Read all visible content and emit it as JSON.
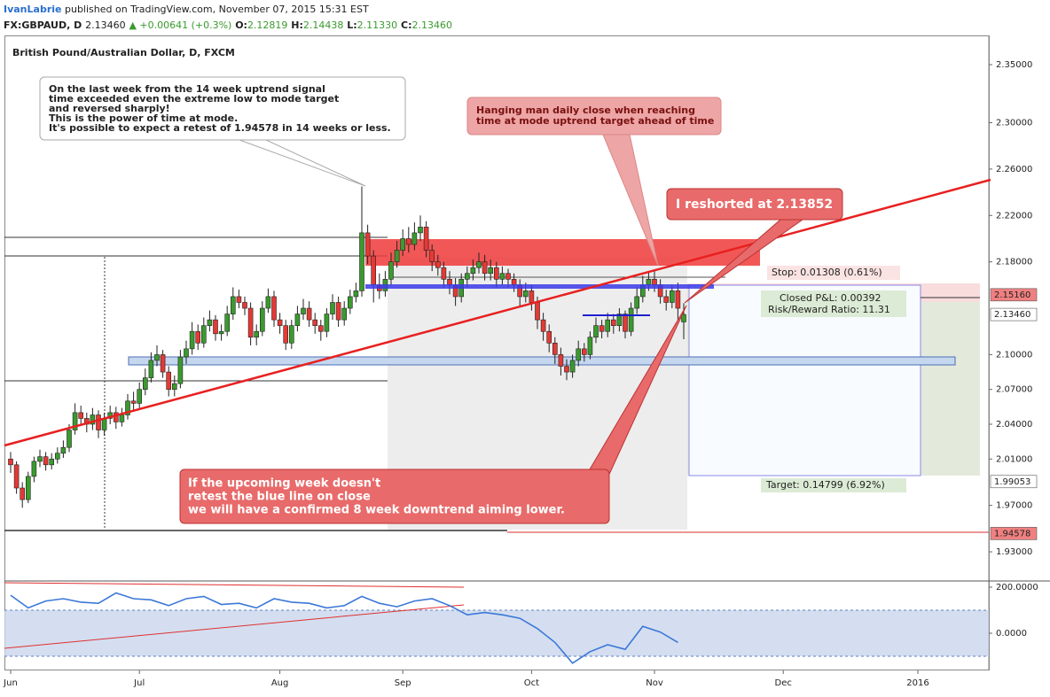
{
  "chart_data": {
    "type": "candlestick",
    "header": {
      "publisher": "IvanLabrie",
      "published": "published on TradingView.com, November 07, 2015 15:31 EST",
      "symbol": "FX:GBPAUD, D",
      "last": "2.13460",
      "change": "▲ +0.00641 (+0.3%)",
      "ohlc": [
        {
          "key": "O:",
          "value": "2.12819"
        },
        {
          "key": "H:",
          "value": "2.14438"
        },
        {
          "key": "L:",
          "value": "2.11330"
        },
        {
          "key": "C:",
          "value": "2.13460"
        }
      ]
    },
    "title": "British Pound/Australian Dollar, D, FXCM",
    "up_color": "#3a9a2e",
    "down_color": "#e53935",
    "open": [
      2.01,
      2.005,
      1.985,
      1.975,
      1.995,
      2.008,
      2.012,
      2.005,
      2.01,
      2.015,
      2.02,
      2.035,
      2.05,
      2.045,
      2.04,
      2.048,
      2.035,
      2.045,
      2.05,
      2.042,
      2.048,
      2.06,
      2.058,
      2.07,
      2.08,
      2.095,
      2.1,
      2.085,
      2.07,
      2.075,
      2.098,
      2.105,
      2.12,
      2.11,
      2.125,
      2.13,
      2.118,
      2.12,
      2.135,
      2.15,
      2.145,
      2.14,
      2.115,
      2.12,
      2.14,
      2.15,
      2.13,
      2.125,
      2.11,
      2.125,
      2.135,
      2.14,
      2.13,
      2.125,
      2.12,
      2.135,
      2.145,
      2.13,
      2.14,
      2.15,
      2.155,
      2.205,
      2.185,
      2.16,
      2.155,
      2.165,
      2.18,
      2.19,
      2.2,
      2.195,
      2.205,
      2.21,
      2.19,
      2.18,
      2.175,
      2.165,
      2.16,
      2.15,
      2.165,
      2.17,
      2.175,
      2.18,
      2.17,
      2.175,
      2.165,
      2.17,
      2.165,
      2.16,
      2.15,
      2.155,
      2.145,
      2.13,
      2.12,
      2.11,
      2.1,
      2.09,
      2.085,
      2.095,
      2.105,
      2.1,
      2.115,
      2.125,
      2.12,
      2.13,
      2.125,
      2.135,
      2.12,
      2.14,
      2.15,
      2.16,
      2.165,
      2.16,
      2.15,
      2.145,
      2.155,
      2.12819
    ],
    "high": [
      2.016,
      2.008,
      1.99,
      1.999,
      2.012,
      2.018,
      2.016,
      2.015,
      2.02,
      2.026,
      2.04,
      2.058,
      2.056,
      2.05,
      2.054,
      2.052,
      2.05,
      2.056,
      2.055,
      2.054,
      2.066,
      2.068,
      2.076,
      2.088,
      2.102,
      2.108,
      2.104,
      2.09,
      2.082,
      2.104,
      2.112,
      2.128,
      2.126,
      2.132,
      2.138,
      2.134,
      2.126,
      2.142,
      2.158,
      2.156,
      2.15,
      2.145,
      2.126,
      2.146,
      2.157,
      2.155,
      2.136,
      2.13,
      2.13,
      2.142,
      2.148,
      2.146,
      2.136,
      2.13,
      2.14,
      2.152,
      2.15,
      2.146,
      2.156,
      2.162,
      2.245,
      2.212,
      2.19,
      2.17,
      2.172,
      2.188,
      2.198,
      2.208,
      2.21,
      2.214,
      2.22,
      2.215,
      2.195,
      2.186,
      2.18,
      2.172,
      2.166,
      2.17,
      2.176,
      2.182,
      2.188,
      2.186,
      2.182,
      2.18,
      2.176,
      2.174,
      2.17,
      2.165,
      2.162,
      2.16,
      2.15,
      2.136,
      2.126,
      2.115,
      2.106,
      2.096,
      2.1,
      2.112,
      2.11,
      2.12,
      2.132,
      2.13,
      2.136,
      2.135,
      2.14,
      2.138,
      2.145,
      2.158,
      2.168,
      2.172,
      2.172,
      2.165,
      2.156,
      2.16,
      2.162,
      2.14438
    ],
    "low": [
      1.998,
      1.98,
      1.968,
      1.972,
      1.99,
      2.003,
      2.0,
      2.001,
      2.006,
      2.011,
      2.016,
      2.031,
      2.04,
      2.033,
      2.035,
      2.028,
      2.03,
      2.04,
      2.036,
      2.038,
      2.044,
      2.052,
      2.054,
      2.065,
      2.076,
      2.09,
      2.08,
      2.064,
      2.064,
      2.071,
      2.092,
      2.1,
      2.104,
      2.106,
      2.12,
      2.112,
      2.112,
      2.116,
      2.13,
      2.14,
      2.134,
      2.108,
      2.108,
      2.116,
      2.136,
      2.124,
      2.118,
      2.104,
      2.105,
      2.12,
      2.13,
      2.124,
      2.118,
      2.112,
      2.115,
      2.13,
      2.124,
      2.125,
      2.135,
      2.145,
      2.15,
      2.178,
      2.145,
      2.148,
      2.15,
      2.16,
      2.175,
      2.185,
      2.188,
      2.19,
      2.198,
      2.184,
      2.172,
      2.168,
      2.158,
      2.152,
      2.142,
      2.145,
      2.158,
      2.164,
      2.17,
      2.164,
      2.164,
      2.158,
      2.16,
      2.158,
      2.154,
      2.142,
      2.145,
      2.138,
      2.122,
      2.112,
      2.102,
      2.092,
      2.082,
      2.078,
      2.08,
      2.09,
      2.094,
      2.096,
      2.11,
      2.114,
      2.115,
      2.118,
      2.12,
      2.114,
      2.116,
      2.135,
      2.145,
      2.155,
      2.154,
      2.144,
      2.138,
      2.14,
      2.128,
      2.1133
    ],
    "close": [
      2.005,
      1.985,
      1.975,
      1.995,
      2.008,
      2.012,
      2.005,
      2.01,
      2.015,
      2.02,
      2.035,
      2.05,
      2.045,
      2.04,
      2.048,
      2.035,
      2.045,
      2.05,
      2.042,
      2.048,
      2.06,
      2.058,
      2.07,
      2.08,
      2.095,
      2.1,
      2.085,
      2.07,
      2.075,
      2.098,
      2.105,
      2.12,
      2.11,
      2.125,
      2.13,
      2.118,
      2.12,
      2.135,
      2.15,
      2.145,
      2.14,
      2.115,
      2.12,
      2.14,
      2.15,
      2.13,
      2.125,
      2.11,
      2.125,
      2.135,
      2.14,
      2.13,
      2.125,
      2.12,
      2.135,
      2.145,
      2.13,
      2.14,
      2.15,
      2.155,
      2.205,
      2.185,
      2.16,
      2.155,
      2.165,
      2.18,
      2.19,
      2.2,
      2.195,
      2.205,
      2.21,
      2.19,
      2.18,
      2.175,
      2.165,
      2.16,
      2.15,
      2.165,
      2.17,
      2.175,
      2.18,
      2.17,
      2.175,
      2.165,
      2.17,
      2.165,
      2.16,
      2.15,
      2.155,
      2.145,
      2.13,
      2.12,
      2.11,
      2.1,
      2.09,
      2.085,
      2.095,
      2.105,
      2.1,
      2.115,
      2.125,
      2.12,
      2.13,
      2.125,
      2.135,
      2.12,
      2.14,
      2.15,
      2.16,
      2.165,
      2.16,
      2.15,
      2.145,
      2.155,
      2.14,
      2.1346
    ],
    "xlim": [
      -1.06,
      167.12
    ],
    "xticks": [
      {
        "value": 0,
        "label": "Jun"
      },
      {
        "value": 22,
        "label": "Jul"
      },
      {
        "value": 46,
        "label": "Aug"
      },
      {
        "value": 67,
        "label": "Sep"
      },
      {
        "value": 89,
        "label": "Oct"
      },
      {
        "value": 110,
        "label": "Nov"
      },
      {
        "value": 132,
        "label": "Dec"
      },
      {
        "value": 155,
        "label": "2016"
      }
    ],
    "ylim": [
      1.9056,
      2.3752
    ],
    "yticks": [
      {
        "value": 2.35,
        "label": "2.35000"
      },
      {
        "value": 2.3,
        "label": "2.30000"
      },
      {
        "value": 2.26,
        "label": "2.26000"
      },
      {
        "value": 2.22,
        "label": "2.22000"
      },
      {
        "value": 2.18,
        "label": "2.18000"
      },
      {
        "value": 2.1,
        "label": "2.10000"
      },
      {
        "value": 2.07,
        "label": "2.07000"
      },
      {
        "value": 2.04,
        "label": "2.04000"
      },
      {
        "value": 2.01,
        "label": "2.01000"
      },
      {
        "value": 1.97,
        "label": "1.97000"
      },
      {
        "value": 1.93,
        "label": "1.93000"
      }
    ],
    "price_labels": [
      {
        "value": 2.1516,
        "label": "2.15160",
        "color": "#f08080"
      },
      {
        "value": 2.1346,
        "label": "2.13460",
        "color": "#ffffff"
      },
      {
        "value": 1.99053,
        "label": "1.99053",
        "color": "#ffffff"
      },
      {
        "value": 1.94578,
        "label": "1.94578",
        "color": "#f08080"
      }
    ],
    "position": {
      "stop": "Stop: 0.01308 (0.61%)",
      "pnl": "Closed P&L: 0.00392",
      "rr": "Risk/Reward Ratio: 11.31",
      "target": "Target: 0.14799 (6.92%)"
    },
    "annotations": {
      "note1": [
        "On the last week from the 14 week uptrend signal",
        "time exceeded even the extreme low to mode target",
        "and reversed sharply!",
        "This is the power of time at mode.",
        "It's possible to expect a retest of 1.94578 in 14 weeks or less."
      ],
      "note2": [
        "Hanging man daily close when reaching",
        "time at mode uptrend target ahead of time"
      ],
      "note3": "I reshorted at 2.13852",
      "note4": [
        "If the upcoming week doesn't",
        "retest the blue line on close",
        "we will have a confirmed 8 week downtrend aiming lower."
      ]
    },
    "indicator": {
      "color": "#3b78d8",
      "x": [
        0,
        3,
        6,
        9,
        12,
        15,
        18,
        21,
        24,
        27,
        30,
        33,
        36,
        39,
        42,
        45,
        48,
        51,
        54,
        57,
        60,
        63,
        66,
        69,
        72,
        75,
        78,
        81,
        84,
        87,
        90,
        93,
        96,
        99,
        102,
        105,
        108,
        111,
        114
      ],
      "values": [
        165,
        110,
        140,
        150,
        135,
        130,
        175,
        150,
        145,
        120,
        150,
        160,
        125,
        130,
        110,
        150,
        135,
        130,
        110,
        120,
        160,
        130,
        115,
        140,
        150,
        120,
        80,
        90,
        80,
        65,
        20,
        -40,
        -130,
        -80,
        -50,
        -70,
        30,
        5,
        -40
      ],
      "ylim": [
        -161.5,
        223.1
      ],
      "yticks": [
        {
          "value": 200,
          "label": "200.0000"
        },
        {
          "value": 0,
          "label": "0.0000"
        }
      ],
      "bands": [
        100,
        -100
      ]
    }
  }
}
